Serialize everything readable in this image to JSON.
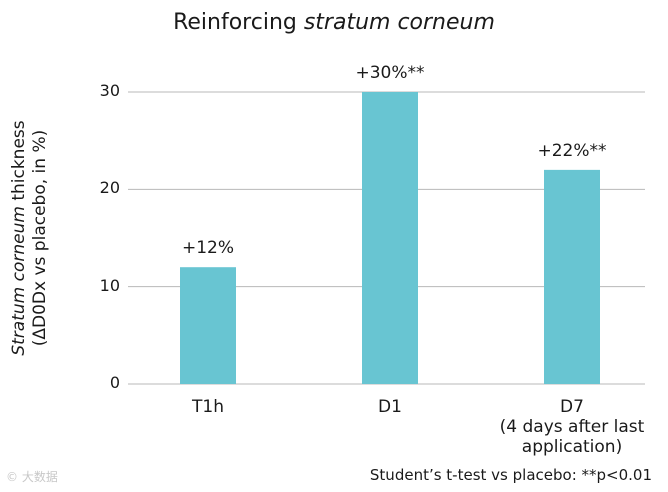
{
  "chart_data": {
    "type": "bar",
    "title_normal": "Reinforcing ",
    "title_italic": "stratum corneum",
    "ylabel_italic": "Stratum corneum",
    "ylabel_rest": " thickness",
    "ylabel_line2": "(ΔD0Dx vs placebo, in %)",
    "categories": [
      [
        "T1h"
      ],
      [
        "D1"
      ],
      [
        "D7",
        "(4 days after last",
        "application)"
      ]
    ],
    "values": [
      12,
      30,
      22
    ],
    "data_labels": [
      "+12%",
      "+30%**",
      "+22%**"
    ],
    "yticks": [
      0,
      10,
      20,
      30
    ],
    "ylim": [
      0,
      30
    ],
    "grid": true,
    "bar_color": "#68c5d2",
    "grid_color": "#b8b8b8"
  },
  "footnote": "Student’s t-test vs placebo: **p<0.01",
  "watermark": "© 大数据"
}
